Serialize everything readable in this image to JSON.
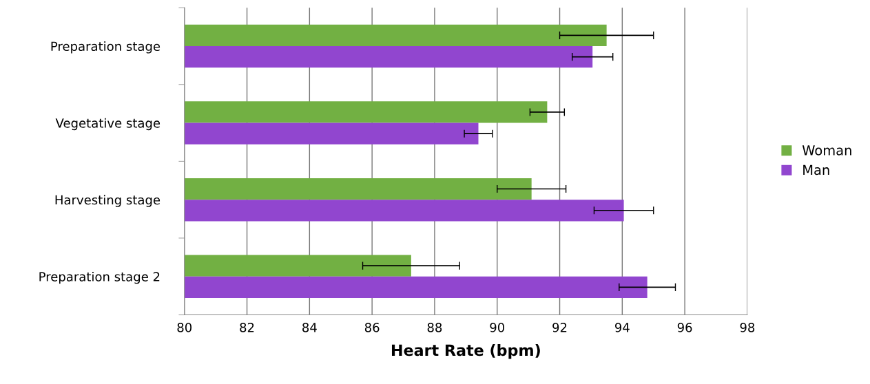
{
  "chart_data": {
    "type": "bar",
    "orientation": "horizontal",
    "xlabel": "Heart Rate (bpm)",
    "categories": [
      "Preparation stage",
      "Vegetative stage",
      "Harvesting stage",
      "Preparation stage 2"
    ],
    "series": [
      {
        "name": "Woman",
        "color": "#72b043",
        "values": [
          93.5,
          91.6,
          91.1,
          87.25
        ],
        "errors": [
          1.5,
          0.55,
          1.1,
          1.55
        ]
      },
      {
        "name": "Man",
        "color": "#9146cf",
        "values": [
          93.05,
          89.4,
          94.05,
          94.8
        ],
        "errors": [
          0.65,
          0.45,
          0.95,
          0.9
        ]
      }
    ],
    "xlim": [
      80,
      98
    ],
    "xticks": [
      80,
      82,
      84,
      86,
      88,
      90,
      92,
      94,
      96,
      98
    ],
    "grid": "x",
    "legend": "right"
  }
}
